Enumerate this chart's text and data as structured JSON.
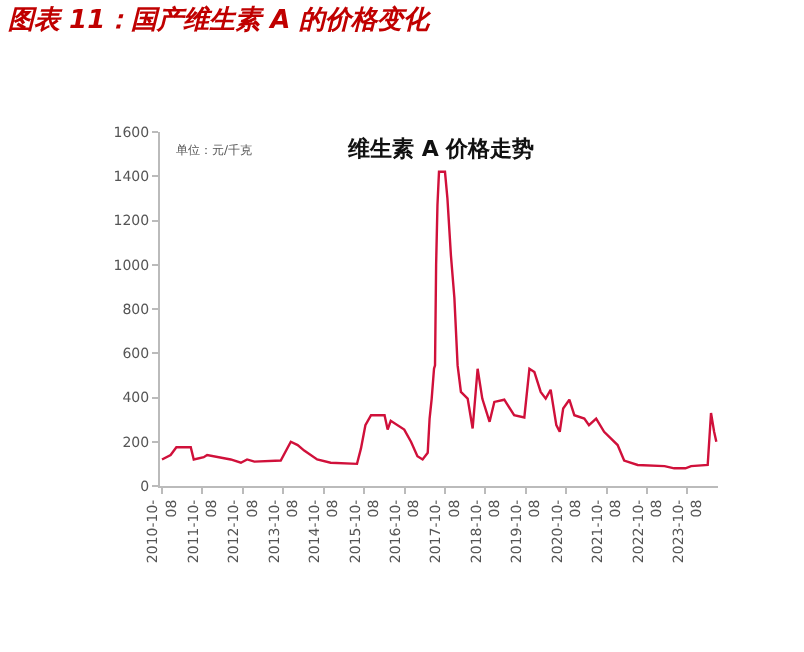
{
  "chart_data": {
    "type": "line",
    "title": "图表 11：国产维生素 A 的价格变化",
    "subtitle": "维生素 A 价格走势",
    "annotations": [
      "单位：元/千克"
    ],
    "x": [
      "2010-10-08",
      "2010-12-25",
      "2011-02-15",
      "2011-06-25",
      "2011-07-22",
      "2011-10-20",
      "2011-11-20",
      "2012-06-20",
      "2012-09-20",
      "2012-11-15",
      "2013-01-20",
      "2013-09-15",
      "2013-12-15",
      "2014-02-15",
      "2014-04-15",
      "2014-08-10",
      "2014-12-10",
      "2015-08-05",
      "2015-09-10",
      "2015-10-20",
      "2015-12-10",
      "2016-04-10",
      "2016-05-08",
      "2016-06-05",
      "2016-10-05",
      "2016-12-05",
      "2017-02-01",
      "2017-03-20",
      "2017-05-05",
      "2017-05-22",
      "2017-06-10",
      "2017-07-01",
      "2017-07-10",
      "2017-07-20",
      "2017-08-01",
      "2017-08-15",
      "2017-09-12",
      "2017-10-08",
      "2017-10-30",
      "2017-12-01",
      "2018-01-01",
      "2018-01-30",
      "2018-03-01",
      "2018-05-01",
      "2018-06-15",
      "2018-07-30",
      "2018-09-10",
      "2018-11-15",
      "2018-12-28",
      "2019-03-28",
      "2019-06-25",
      "2019-09-25",
      "2019-11-10",
      "2019-12-25",
      "2020-02-20",
      "2020-04-05",
      "2020-05-20",
      "2020-07-10",
      "2020-08-10",
      "2020-09-10",
      "2020-11-05",
      "2020-12-20",
      "2021-03-20",
      "2021-05-01",
      "2021-07-05",
      "2021-09-15",
      "2022-01-15",
      "2022-03-15",
      "2022-07-15",
      "2023-03-15",
      "2023-06-10",
      "2023-09-20",
      "2023-11-10",
      "2024-04-08",
      "2024-05-08",
      "2024-06-05",
      "2024-06-25"
    ],
    "series": [
      {
        "color": "#d0103a",
        "values": [
          120,
          140,
          175,
          175,
          120,
          130,
          140,
          120,
          105,
          120,
          110,
          115,
          200,
          185,
          160,
          120,
          105,
          100,
          170,
          275,
          320,
          320,
          255,
          295,
          255,
          200,
          135,
          120,
          150,
          305,
          395,
          530,
          545,
          1000,
          1270,
          1420,
          1420,
          1420,
          1300,
          1040,
          850,
          545,
          425,
          395,
          260,
          530,
          395,
          290,
          380,
          390,
          320,
          310,
          530,
          515,
          425,
          395,
          435,
          275,
          245,
          350,
          390,
          320,
          305,
          275,
          305,
          245,
          185,
          115,
          95,
          90,
          80,
          80,
          90,
          95,
          330,
          245,
          200
        ]
      }
    ],
    "xlim": [
      "2010-09-20",
      "2024-07-10"
    ],
    "xticks": [
      "2010-10-08",
      "2011-10-08",
      "2012-10-08",
      "2013-10-08",
      "2014-10-08",
      "2015-10-08",
      "2016-10-08",
      "2017-10-08",
      "2018-10-08",
      "2019-10-08",
      "2020-10-08",
      "2021-10-08",
      "2022-10-08",
      "2023-10-08"
    ],
    "ylim": [
      0,
      1600
    ],
    "yticks": [
      0,
      200,
      400,
      600,
      800,
      1000,
      1200,
      1400,
      1600
    ],
    "marker": "none",
    "line_style": "solid"
  }
}
